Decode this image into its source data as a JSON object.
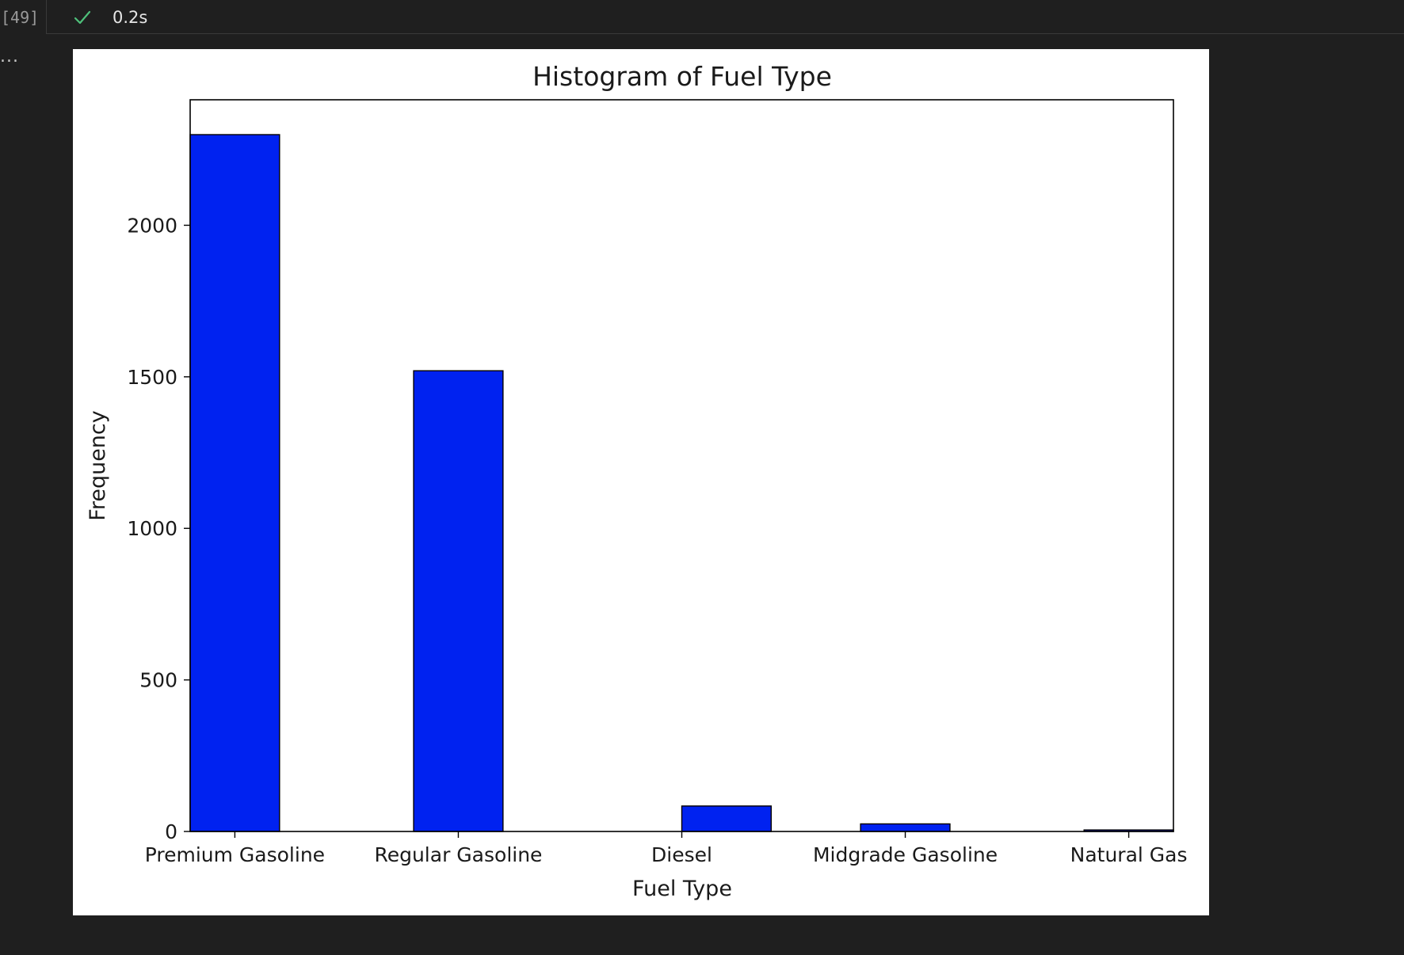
{
  "cell": {
    "execution_count": "[49]",
    "status_icon": "check-icon",
    "elapsed": "0.2s",
    "output_menu_icon": "ellipsis-icon",
    "output_menu_label": "..."
  },
  "colors": {
    "bar_fill": "#0022f0",
    "bar_edge": "#000000",
    "success_check": "#4ec07a",
    "background": "#1f1f1f"
  },
  "chart_data": {
    "type": "bar",
    "title": "Histogram of Fuel Type",
    "xlabel": "Fuel Type",
    "ylabel": "Frequency",
    "categories": [
      "Premium Gasoline",
      "Regular Gasoline",
      "Diesel",
      "Midgrade Gasoline",
      "Natural Gas"
    ],
    "values": [
      2299,
      1520,
      84,
      25,
      5
    ],
    "yticks": [
      0,
      500,
      1000,
      1500,
      2000
    ],
    "ylim": [
      0,
      2414
    ],
    "xlim": [
      -0.2,
      4.2
    ],
    "bar_offsets": [
      0,
      0,
      0.2,
      0,
      0
    ],
    "grid": false,
    "legend": "none"
  }
}
